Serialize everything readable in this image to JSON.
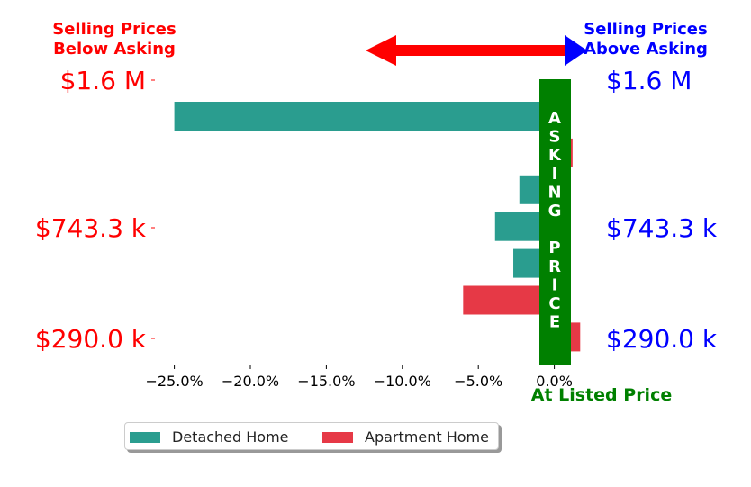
{
  "chart_data": {
    "type": "bar",
    "orientation": "horizontal",
    "xlim": [
      -27.0,
      2.5
    ],
    "xticks": [
      -25,
      -20,
      -15,
      -10,
      -5,
      0
    ],
    "xtick_labels": [
      "−25.0%",
      "−20.0%",
      "−15.0%",
      "−10.0%",
      "−5.0%",
      "0.0%"
    ],
    "bars": [
      {
        "series": "Detached Home",
        "value": -25.0
      },
      {
        "series": "Apartment Home",
        "value": 1.2
      },
      {
        "series": "Detached Home",
        "value": -2.3
      },
      {
        "series": "Detached Home",
        "value": -3.9
      },
      {
        "series": "Detached Home",
        "value": -2.7
      },
      {
        "series": "Apartment Home",
        "value": -6.0
      },
      {
        "series": "Apartment Home",
        "value": 1.7
      }
    ],
    "series": [
      {
        "name": "Detached Home",
        "color": "#2a9d8f"
      },
      {
        "name": "Apartment Home",
        "color": "#e63946"
      }
    ],
    "price_ticks_left": [
      "$1.6 M",
      "$743.3 k",
      "$290.0 k"
    ],
    "price_ticks_right": [
      "$1.6 M",
      "$743.3 k",
      "$290.0 k"
    ],
    "left_header": [
      "Selling Prices",
      "Below Asking"
    ],
    "right_header": [
      "Selling Prices",
      "Above Asking"
    ],
    "asking_label": [
      "A",
      "S",
      "K",
      "I",
      "N",
      "G",
      "",
      "P",
      "R",
      "I",
      "C",
      "E"
    ],
    "xlabel": "At Listed Price",
    "legend_position": "bottom-left",
    "colors": {
      "below": "#ff0000",
      "above": "#0000ff",
      "asking": "#008000",
      "arrow_left": "#ff0000",
      "arrow_right": "#0000ff"
    }
  }
}
